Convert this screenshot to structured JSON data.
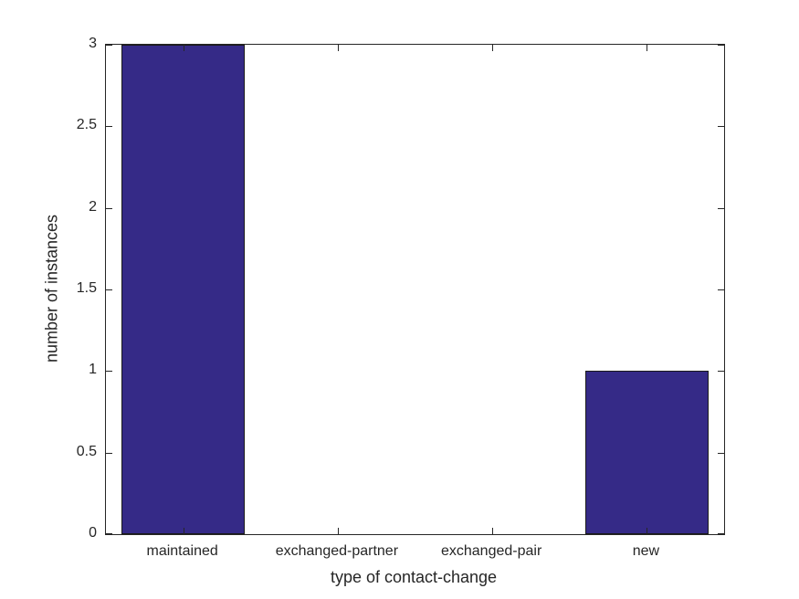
{
  "chart_data": {
    "type": "bar",
    "categories": [
      "maintained",
      "exchanged-partner",
      "exchanged-pair",
      "new"
    ],
    "values": [
      3,
      0,
      0,
      1
    ],
    "title": "",
    "xlabel": "type of contact-change",
    "ylabel": "number of instances",
    "ylim": [
      0,
      3
    ],
    "yticks": [
      0,
      0.5,
      1,
      1.5,
      2,
      2.5,
      3
    ],
    "ytick_labels": [
      "0",
      "0.5",
      "1",
      "1.5",
      "2",
      "2.5",
      "3"
    ],
    "bar_width_fraction": 0.8,
    "grid": false,
    "legend_position": "none",
    "colors": {
      "bar_face": "#352A87",
      "bar_edge": "#1a1a1a",
      "axis": "#262626",
      "background": "#ffffff"
    }
  }
}
